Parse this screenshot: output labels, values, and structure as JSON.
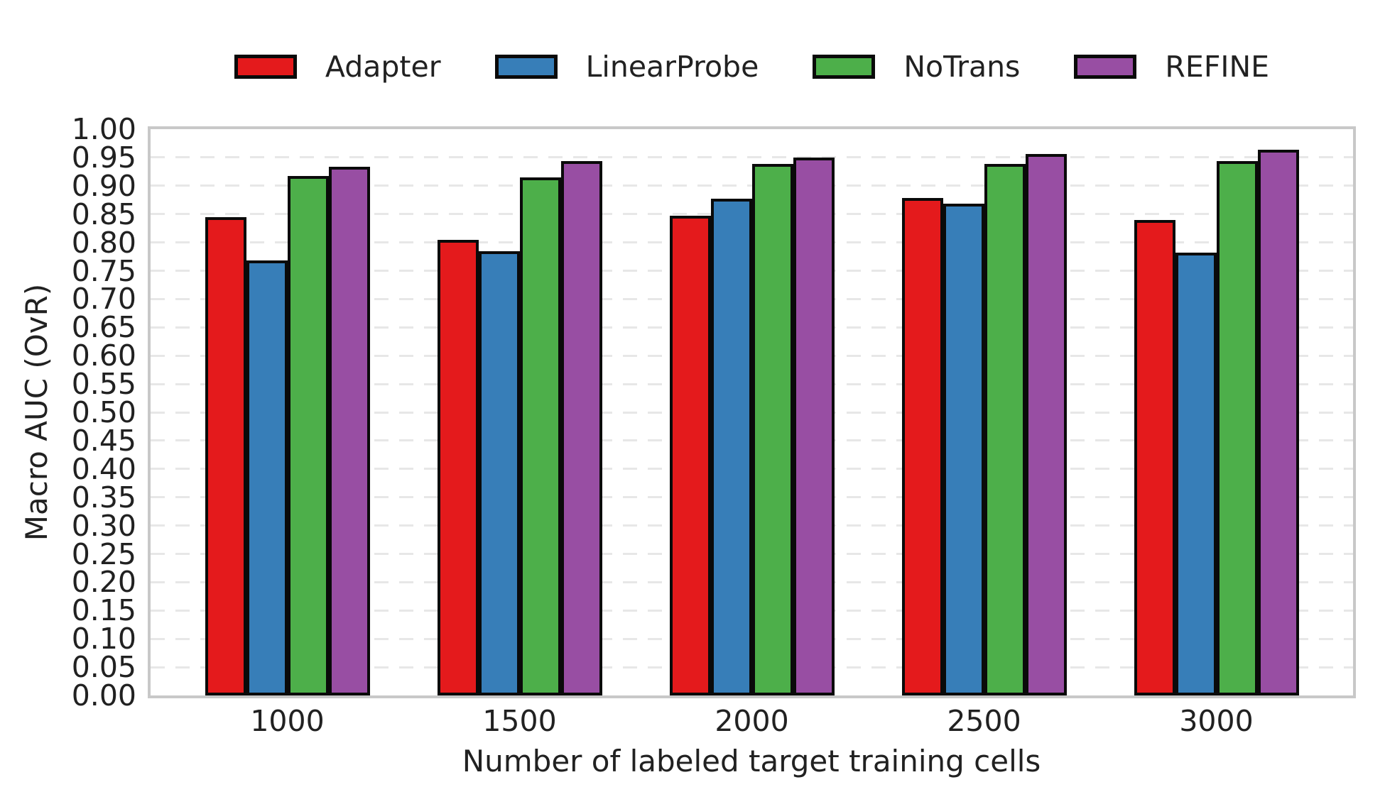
{
  "chart_data": {
    "type": "bar",
    "title": "",
    "xlabel": "Number of labeled target training cells",
    "ylabel": "Macro AUC (OvR)",
    "categories": [
      "1000",
      "1500",
      "2000",
      "2500",
      "3000"
    ],
    "series": [
      {
        "name": "Adapter",
        "color": "#e41a1c",
        "values": [
          0.845,
          0.804,
          0.847,
          0.879,
          0.84
        ]
      },
      {
        "name": "LinearProbe",
        "color": "#377eb8",
        "values": [
          0.768,
          0.784,
          0.877,
          0.869,
          0.782
        ]
      },
      {
        "name": "NoTrans",
        "color": "#4daf4a",
        "values": [
          0.917,
          0.915,
          0.938,
          0.939,
          0.944
        ]
      },
      {
        "name": "REFINE",
        "color": "#984ea3",
        "values": [
          0.933,
          0.943,
          0.95,
          0.956,
          0.964
        ]
      }
    ],
    "ylim": [
      0.0,
      1.0
    ],
    "ytick_step": 0.05,
    "ytick_labels": [
      "0.00",
      "0.05",
      "0.10",
      "0.15",
      "0.20",
      "0.25",
      "0.30",
      "0.35",
      "0.40",
      "0.45",
      "0.50",
      "0.55",
      "0.60",
      "0.65",
      "0.70",
      "0.75",
      "0.80",
      "0.85",
      "0.90",
      "0.95",
      "1.00"
    ],
    "grid": "horizontal-dashed",
    "legend_position": "top-center",
    "colors": {
      "bar_edge": "#0a0a0a",
      "spine": "#c8c8c8",
      "grid": "#e7e7e7",
      "text": "#212121",
      "background": "#ffffff"
    }
  }
}
